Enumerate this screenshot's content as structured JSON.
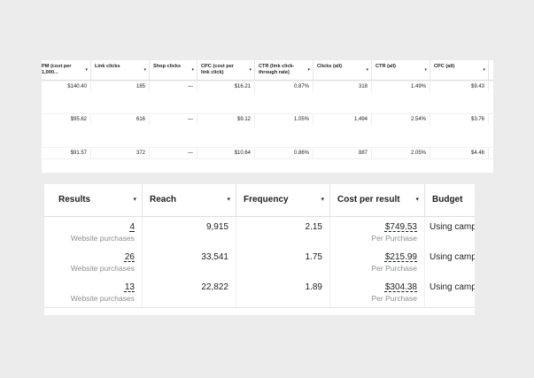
{
  "top_table": {
    "headers": [
      {
        "label": "PM (cost per 1,000...",
        "caret": "▾"
      },
      {
        "label": "Link clicks",
        "caret": "▾"
      },
      {
        "label": "Shop clicks",
        "caret": "▾"
      },
      {
        "label": "CPC (cost per link click)",
        "caret": "▾"
      },
      {
        "label": "CTR (link click-through rate)",
        "caret": "▾"
      },
      {
        "label": "Clicks (all)",
        "caret": "▾"
      },
      {
        "label": "CTR (all)",
        "caret": "▾"
      },
      {
        "label": "CPC (all)",
        "caret": "▾"
      }
    ],
    "rows": [
      [
        "$140.40",
        "185",
        "—",
        "$16.21",
        "0.87%",
        "318",
        "1.49%",
        "$9.43"
      ],
      [
        "$95.62",
        "616",
        "—",
        "$9.12",
        "1.05%",
        "1,494",
        "2.54%",
        "$3.76"
      ],
      [
        "$91.57",
        "372",
        "—",
        "$10.64",
        "0.86%",
        "887",
        "2.05%",
        "$4.46"
      ]
    ]
  },
  "bottom_table": {
    "headers": [
      {
        "label": "Results",
        "caret": "▾"
      },
      {
        "label": "Reach",
        "caret": "▾"
      },
      {
        "label": "Frequency",
        "caret": "▾"
      },
      {
        "label": "Cost per result",
        "caret": "▾"
      },
      {
        "label": "Budget",
        "caret": ""
      }
    ],
    "rows": [
      {
        "results": "4",
        "results_sub": "Website purchases",
        "reach": "9,915",
        "frequency": "2.15",
        "cost": "$749.53",
        "cost_sub": "Per Purchase",
        "budget": "Using campaign budget"
      },
      {
        "results": "26",
        "results_sub": "Website purchases",
        "reach": "33,541",
        "frequency": "1.75",
        "cost": "$215.99",
        "cost_sub": "Per Purchase",
        "budget": "Using campaign budget"
      },
      {
        "results": "13",
        "results_sub": "Website purchases",
        "reach": "22,822",
        "frequency": "1.89",
        "cost": "$304.38",
        "cost_sub": "Per Purchase",
        "budget": "Using campaign budget"
      }
    ]
  }
}
